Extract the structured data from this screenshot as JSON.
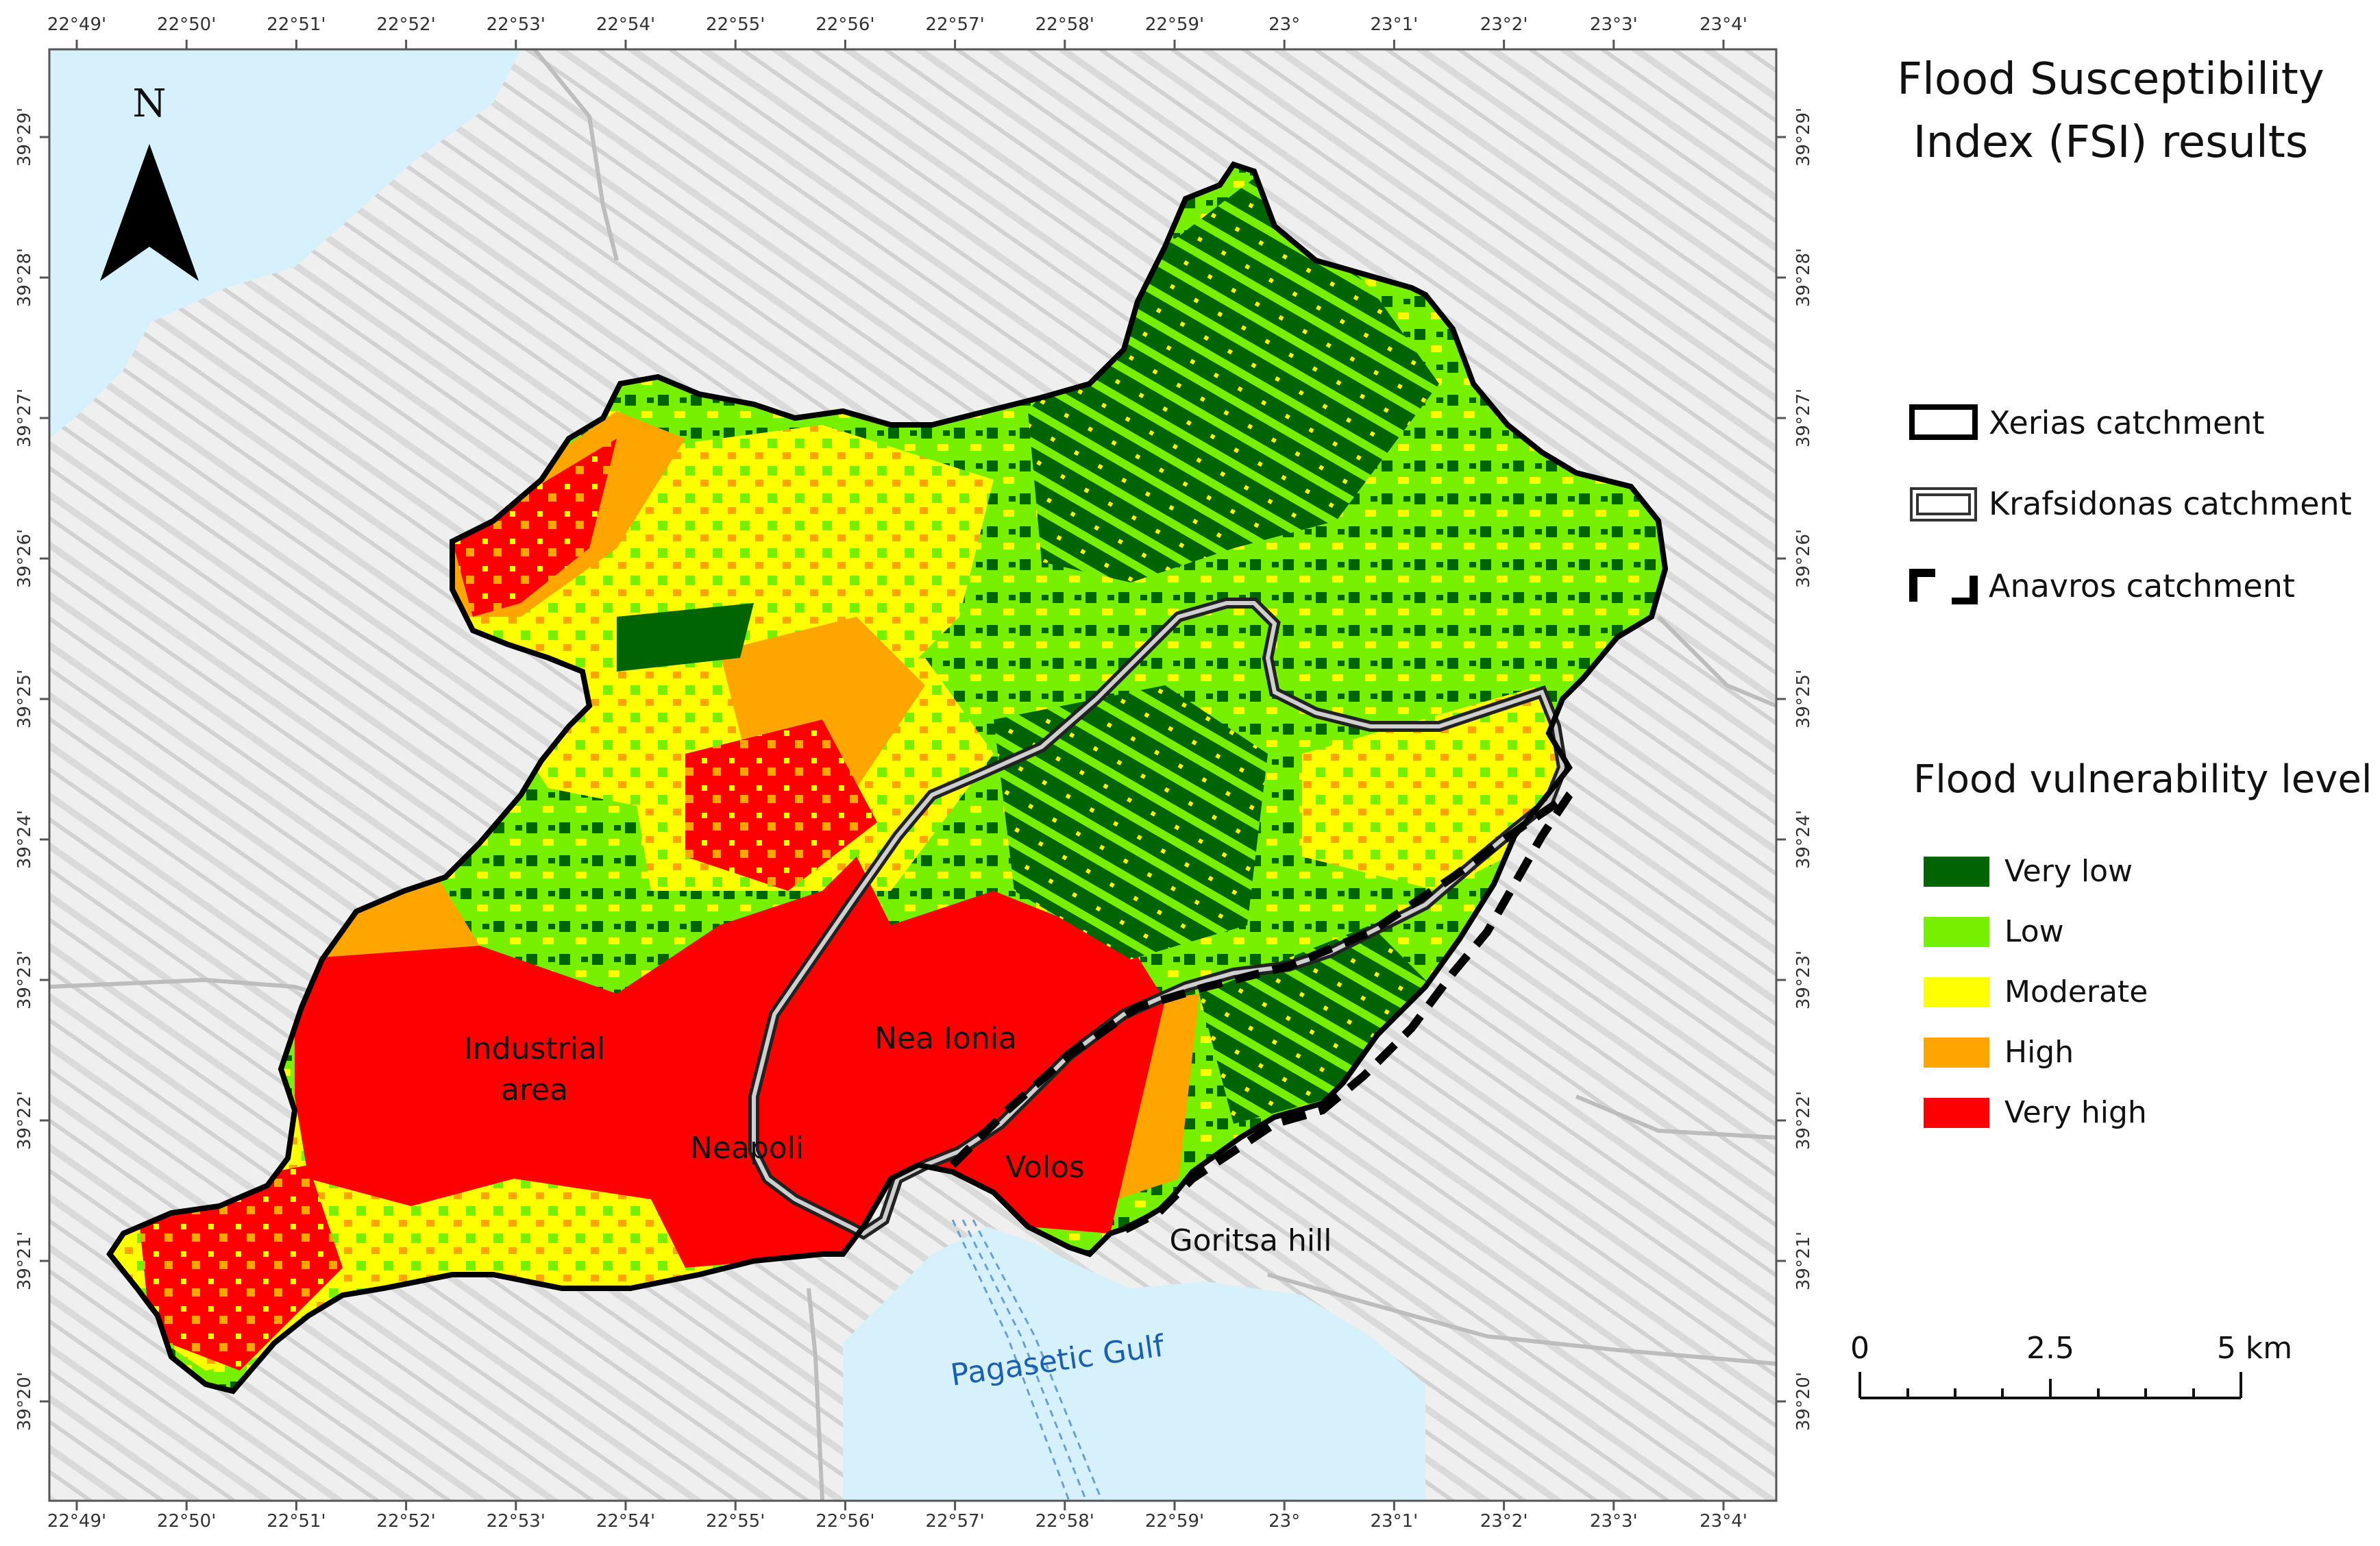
{
  "title": "Flood Susceptibility Index (FSI) results",
  "title_lines": [
    "Flood Susceptibility",
    "Index (FSI) results"
  ],
  "north_label": "N",
  "lon_ticks": [
    "22°49'",
    "22°50'",
    "22°51'",
    "22°52'",
    "22°53'",
    "22°54'",
    "22°55'",
    "22°56'",
    "22°57'",
    "22°58'",
    "22°59'",
    "23°",
    "23°1'",
    "23°2'",
    "23°3'",
    "23°4'"
  ],
  "lat_ticks": [
    "39°29'",
    "39°28'",
    "39°27'",
    "39°26'",
    "39°25'",
    "39°24'",
    "39°23'",
    "39°22'",
    "39°21'",
    "39°20'"
  ],
  "catchments": [
    {
      "label": "Xerias catchment",
      "style": "thick-solid"
    },
    {
      "label": "Krafsidonas catchment",
      "style": "double-line"
    },
    {
      "label": "Anavros catchment",
      "style": "thick-dashed"
    }
  ],
  "vulnerability_title": "Flood vulnerability level",
  "vulnerability_levels": [
    {
      "label": "Very low",
      "color": "#006400"
    },
    {
      "label": "Low",
      "color": "#77f000"
    },
    {
      "label": "Moderate",
      "color": "#ffff00"
    },
    {
      "label": "High",
      "color": "#ffa500"
    },
    {
      "label": "Very high",
      "color": "#ff0000"
    }
  ],
  "place_labels": [
    "Industrial area",
    "Neapoli",
    "Nea Ionia",
    "Volos",
    "Goritsa hill",
    "Pagasetic Gulf"
  ],
  "scale_bar": {
    "ticks": [
      "0",
      "2.5",
      "5 km"
    ]
  },
  "colors": {
    "sea": "#d6f1fb",
    "relief": "#ececec",
    "boundary": "#000000",
    "water_text": "#1a5fb4"
  }
}
